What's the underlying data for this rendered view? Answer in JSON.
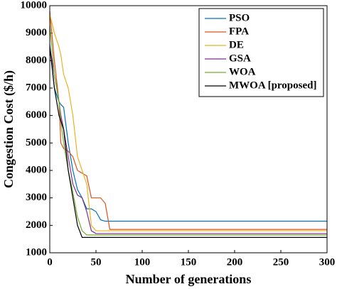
{
  "chart_data": {
    "type": "line",
    "x_label": "Number of generations",
    "y_label": "Congestion Cost ($/h)",
    "x": [
      0,
      5,
      10,
      12,
      15,
      20,
      25,
      30,
      35,
      40,
      45,
      50,
      55,
      60,
      65,
      300
    ],
    "series": [
      {
        "name": "PSO",
        "color": "#0072bd",
        "values": [
          8600,
          7000,
          6500,
          6400,
          6300,
          5000,
          4000,
          3300,
          3000,
          2600,
          2600,
          2500,
          2200,
          2150,
          2150,
          2150
        ]
      },
      {
        "name": "FPA",
        "color": "#d95319",
        "values": [
          9800,
          8000,
          6500,
          5000,
          4800,
          4700,
          4500,
          4000,
          3900,
          3800,
          3000,
          3000,
          3000,
          2800,
          1850,
          1850
        ]
      },
      {
        "name": "DE",
        "color": "#edb120",
        "values": [
          9700,
          9000,
          8500,
          8200,
          7500,
          7000,
          6000,
          4500,
          4000,
          3500,
          2000,
          1800,
          1800,
          1800,
          1800,
          1800
        ]
      },
      {
        "name": "GSA",
        "color": "#7e2f8e",
        "values": [
          8500,
          7500,
          6500,
          6000,
          5500,
          4500,
          3500,
          3100,
          3000,
          2500,
          1800,
          1700,
          1700,
          1700,
          1700,
          1700
        ]
      },
      {
        "name": "WOA",
        "color": "#77ac30",
        "values": [
          9300,
          7500,
          6500,
          5800,
          5000,
          4000,
          3200,
          2300,
          1800,
          1650,
          1650,
          1650,
          1650,
          1650,
          1650,
          1650
        ]
      },
      {
        "name": "MWOA [proposed]",
        "color": "#000000",
        "values": [
          8500,
          7000,
          6000,
          5800,
          5500,
          4000,
          3000,
          2000,
          1560,
          1560,
          1560,
          1560,
          1560,
          1560,
          1560,
          1560
        ]
      }
    ],
    "xlim": [
      0,
      300
    ],
    "xticks": [
      0,
      50,
      100,
      150,
      200,
      250,
      300
    ],
    "ylim": [
      1000,
      10000
    ],
    "yticks": [
      1000,
      2000,
      3000,
      4000,
      5000,
      6000,
      7000,
      8000,
      9000,
      10000
    ],
    "legend": "top-right"
  }
}
